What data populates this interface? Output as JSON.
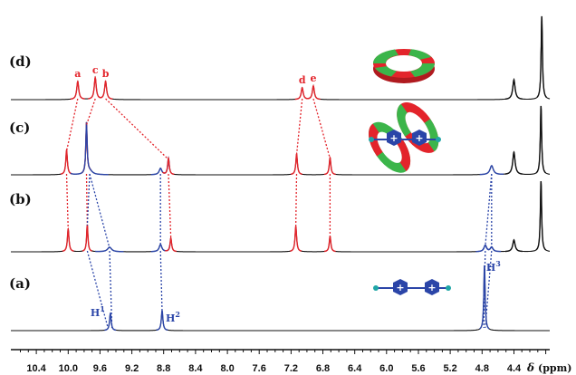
{
  "chart_data": {
    "type": "line",
    "title": "",
    "xlabel_symbol": "δ",
    "xlabel_unit": "(ppm)",
    "xlim": [
      10.72,
      3.95
    ],
    "x_ticks": [
      "10.4",
      "10.0",
      "9.6",
      "9.2",
      "8.8",
      "8.4",
      "8.0",
      "7.6",
      "7.2",
      "6.8",
      "6.4",
      "6.0",
      "5.6",
      "5.2",
      "4.8",
      "4.4"
    ],
    "colors": {
      "black": "#111111",
      "red": "#e3242b",
      "blue": "#2b45a8",
      "green": "#3bb54a",
      "teal": "#1fa6a6"
    },
    "series": [
      {
        "name": "(d)",
        "peaks": [
          {
            "ppm": 9.88,
            "h": 20,
            "w": 0.015,
            "color": "red",
            "label": "a"
          },
          {
            "ppm": 9.66,
            "h": 24,
            "w": 0.015,
            "color": "red",
            "label": "c"
          },
          {
            "ppm": 9.53,
            "h": 20,
            "w": 0.015,
            "color": "red",
            "label": "b"
          },
          {
            "ppm": 7.06,
            "h": 13,
            "w": 0.015,
            "color": "red",
            "label": "d"
          },
          {
            "ppm": 6.92,
            "h": 15,
            "w": 0.015,
            "color": "red",
            "label": "e"
          },
          {
            "ppm": 4.4,
            "h": 22,
            "w": 0.018,
            "color": "black"
          },
          {
            "ppm": 4.05,
            "h": 92,
            "w": 0.01,
            "color": "black"
          }
        ]
      },
      {
        "name": "(c)",
        "peaks": [
          {
            "ppm": 10.02,
            "h": 27,
            "w": 0.012,
            "color": "red"
          },
          {
            "ppm": 9.77,
            "h": 56,
            "w": 0.01,
            "color": "red"
          },
          {
            "ppm": 9.73,
            "h": 4,
            "w": 0.04,
            "color": "blue"
          },
          {
            "ppm": 8.84,
            "h": 7,
            "w": 0.02,
            "color": "blue"
          },
          {
            "ppm": 8.74,
            "h": 18,
            "w": 0.012,
            "color": "red"
          },
          {
            "ppm": 7.13,
            "h": 23,
            "w": 0.012,
            "color": "red"
          },
          {
            "ppm": 6.71,
            "h": 19,
            "w": 0.012,
            "color": "red"
          },
          {
            "ppm": 4.68,
            "h": 10,
            "w": 0.025,
            "color": "blue"
          },
          {
            "ppm": 4.4,
            "h": 25,
            "w": 0.018,
            "color": "black"
          },
          {
            "ppm": 4.06,
            "h": 76,
            "w": 0.01,
            "color": "black"
          }
        ]
      },
      {
        "name": "(b)",
        "peaks": [
          {
            "ppm": 10.0,
            "h": 25,
            "w": 0.012,
            "color": "red"
          },
          {
            "ppm": 9.76,
            "h": 30,
            "w": 0.01,
            "color": "red"
          },
          {
            "ppm": 9.48,
            "h": 5,
            "w": 0.03,
            "color": "blue"
          },
          {
            "ppm": 8.84,
            "h": 8,
            "w": 0.02,
            "color": "blue"
          },
          {
            "ppm": 8.71,
            "h": 15,
            "w": 0.012,
            "color": "red"
          },
          {
            "ppm": 7.14,
            "h": 28,
            "w": 0.012,
            "color": "red"
          },
          {
            "ppm": 6.71,
            "h": 17,
            "w": 0.012,
            "color": "red"
          },
          {
            "ppm": 4.76,
            "h": 7,
            "w": 0.02,
            "color": "blue"
          },
          {
            "ppm": 4.68,
            "h": 5,
            "w": 0.02,
            "color": "blue"
          },
          {
            "ppm": 4.4,
            "h": 13,
            "w": 0.018,
            "color": "black"
          },
          {
            "ppm": 4.06,
            "h": 78,
            "w": 0.01,
            "color": "black"
          }
        ]
      },
      {
        "name": "(a)",
        "peaks": [
          {
            "ppm": 9.47,
            "h": 19,
            "w": 0.012,
            "color": "blue",
            "label": "H1"
          },
          {
            "ppm": 8.82,
            "h": 22,
            "w": 0.012,
            "color": "blue",
            "label": "H2"
          },
          {
            "ppm": 4.77,
            "h": 72,
            "w": 0.01,
            "color": "blue",
            "label": "H3"
          }
        ]
      }
    ],
    "correlations": {
      "red": [
        {
          "from": [
            0,
            9.88
          ],
          "to": [
            1,
            10.02
          ]
        },
        {
          "from": [
            0,
            9.66
          ],
          "to": [
            1,
            9.77
          ]
        },
        {
          "from": [
            0,
            9.53
          ],
          "to": [
            1,
            8.74
          ]
        },
        {
          "from": [
            0,
            7.06
          ],
          "to": [
            1,
            7.13
          ]
        },
        {
          "from": [
            0,
            6.92
          ],
          "to": [
            1,
            6.71
          ]
        },
        {
          "from": [
            1,
            10.02
          ],
          "to": [
            2,
            10.0
          ]
        },
        {
          "from": [
            1,
            9.77
          ],
          "to": [
            2,
            9.76
          ]
        },
        {
          "from": [
            1,
            8.74
          ],
          "to": [
            2,
            8.71
          ]
        },
        {
          "from": [
            1,
            7.13
          ],
          "to": [
            2,
            7.14
          ]
        },
        {
          "from": [
            1,
            6.71
          ],
          "to": [
            2,
            6.71
          ]
        }
      ],
      "blue": [
        {
          "from": [
            1,
            9.73
          ],
          "to": [
            2,
            9.76
          ]
        },
        {
          "from": [
            1,
            9.73
          ],
          "to": [
            2,
            9.48
          ]
        },
        {
          "from": [
            2,
            9.76
          ],
          "to": [
            3,
            9.5
          ]
        },
        {
          "from": [
            2,
            9.48
          ],
          "to": [
            3,
            9.45
          ]
        },
        {
          "from": [
            1,
            8.84
          ],
          "to": [
            2,
            8.84
          ]
        },
        {
          "from": [
            2,
            8.84
          ],
          "to": [
            3,
            8.82
          ]
        },
        {
          "from": [
            1,
            4.68
          ],
          "to": [
            2,
            4.76
          ]
        },
        {
          "from": [
            1,
            4.68
          ],
          "to": [
            2,
            4.68
          ]
        },
        {
          "from": [
            2,
            4.76
          ],
          "to": [
            3,
            4.78
          ]
        },
        {
          "from": [
            2,
            4.68
          ],
          "to": [
            3,
            4.76
          ]
        }
      ]
    },
    "peak_labels_red": [
      "a",
      "c",
      "b",
      "d",
      "e"
    ],
    "peak_labels_blue": [
      {
        "base": "H",
        "sup": "1"
      },
      {
        "base": "H",
        "sup": "2"
      },
      {
        "base": "H",
        "sup": "3"
      }
    ],
    "icons": [
      "macrocycle-ring-icon",
      "rotaxane-complex-icon",
      "guest-axle-icon"
    ]
  }
}
